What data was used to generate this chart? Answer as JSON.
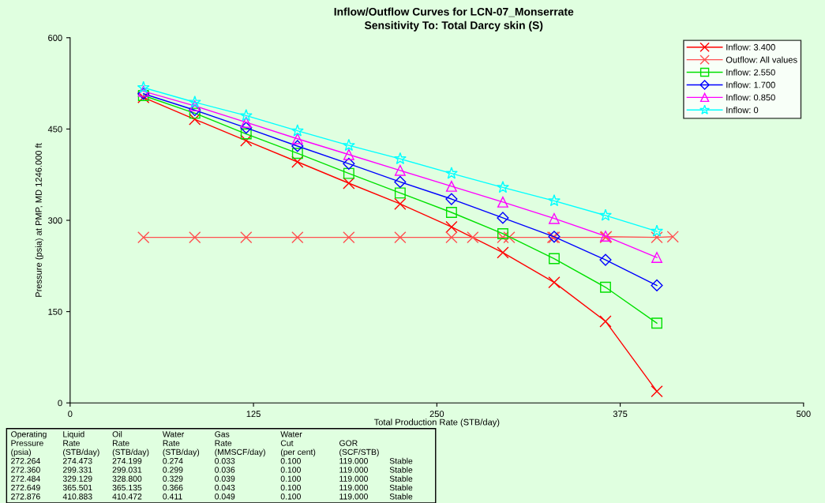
{
  "chart_data": {
    "type": "line",
    "title": "Inflow/Outflow Curves for LCN-07_Monserrate",
    "subtitle": "Sensitivity To: Total Darcy skin (S)",
    "xlabel": "Total Production Rate (STB/day)",
    "ylabel": "Pressure (psia) at PMP, MD 1246.000 ft",
    "x": [
      50,
      85,
      120,
      155,
      190,
      225,
      260,
      295,
      330,
      365,
      400
    ],
    "series": [
      {
        "name": "Inflow: 3.400",
        "color": "#ff0000",
        "marker": "cross",
        "values": [
          502,
          466,
          431,
          396,
          361,
          327,
          289,
          247,
          198,
          134,
          19
        ]
      },
      {
        "name": "Outflow: All values",
        "color": "#ff5050",
        "marker": "cross",
        "x": [
          50,
          85,
          120,
          155,
          190,
          225,
          260,
          274.473,
          295,
          299.331,
          329.129,
          330,
          365,
          365.501,
          400,
          410.883
        ],
        "values": [
          272,
          272,
          272,
          272,
          272,
          272,
          272,
          272,
          272,
          272,
          272,
          272,
          272,
          273,
          272,
          273
        ]
      },
      {
        "name": "Inflow: 2.550",
        "color": "#00e000",
        "marker": "square",
        "values": [
          505,
          476,
          442,
          410,
          377,
          345,
          313,
          278,
          237,
          190,
          131
        ]
      },
      {
        "name": "Inflow: 1.700",
        "color": "#0000ff",
        "marker": "diamond",
        "values": [
          508,
          481,
          452,
          422,
          393,
          363,
          335,
          304,
          273,
          235,
          193
        ]
      },
      {
        "name": "Inflow: 0.850",
        "color": "#ff00ff",
        "marker": "triangle",
        "values": [
          512,
          488,
          461,
          434,
          408,
          382,
          356,
          330,
          303,
          274,
          239
        ]
      },
      {
        "name": "Inflow: 0",
        "color": "#00ffff",
        "marker": "star",
        "values": [
          518,
          494,
          472,
          447,
          423,
          401,
          377,
          354,
          332,
          308,
          282
        ]
      }
    ],
    "xlim": [
      0,
      500
    ],
    "xticks": [
      0,
      125,
      250,
      375,
      500
    ],
    "ylim": [
      0,
      600
    ],
    "yticks": [
      0,
      150,
      300,
      450,
      600
    ],
    "grid": false,
    "legend": "top right",
    "line_style": "solid",
    "annotations": [
      "Operating\tLiquid\tOil\tWater\tGas\tWater",
      "Pressure\tRate\tRate\tRate\tRate\tCut\tGOR",
      "(psia)\t(STB/day)\t(STB/day)\t(STB/day)\t(MMSCF/day)\t(per cent)\t(SCF/STB)",
      "272.264\t274.473\t274.199\t0.274\t0.033\t0.100\t119.000\tStable",
      "272.360\t299.331\t299.031\t0.299\t0.036\t0.100\t119.000\tStable",
      "272.484\t329.129\t328.800\t0.329\t0.039\t0.100\t119.000\tStable",
      "272.649\t365.501\t365.135\t0.366\t0.043\t0.100\t119.000\tStable",
      "272.876\t410.883\t410.472\t0.411\t0.049\t0.100\t119.000\tStable"
    ]
  }
}
